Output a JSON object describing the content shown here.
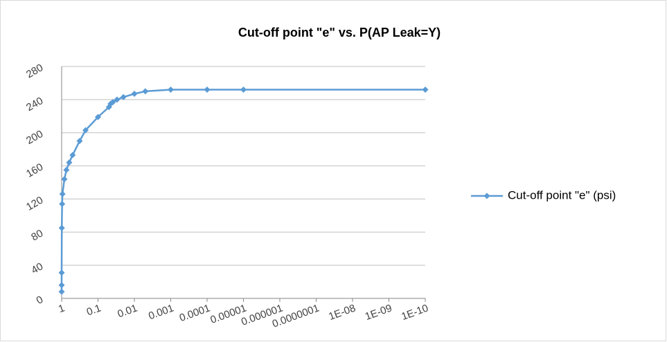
{
  "chart_data": {
    "type": "line",
    "title": "Cut-off point \"e\" vs. P(AP Leak=Y)",
    "xscale": "log",
    "x": [
      1,
      1,
      1,
      0.99,
      0.97,
      0.95,
      0.84,
      0.74,
      0.62,
      0.5,
      0.32,
      0.22,
      0.1,
      0.05,
      0.045,
      0.039,
      0.03,
      0.02,
      0.01,
      0.005,
      0.001,
      0.0001,
      1e-05,
      1e-10
    ],
    "series": [
      {
        "name": "Cut-off point \"e\" (psi)",
        "color": "#5b9bd5",
        "values": [
          8,
          16,
          31,
          85,
          114,
          126,
          144,
          155,
          164,
          173,
          190,
          203,
          219,
          231,
          235,
          237,
          240,
          243,
          247,
          250,
          252,
          252,
          252,
          252
        ]
      }
    ],
    "xlim": [
      1,
      1e-10
    ],
    "xticks": [
      1,
      0.1,
      0.01,
      0.001,
      0.0001,
      1e-05,
      1e-06,
      {
        "value": 1e-07,
        "label": "0.0000001"
      },
      {
        "value": 1e-08,
        "label": "1E-08"
      },
      {
        "value": 1e-09,
        "label": "1E-09"
      },
      {
        "value": 1e-10,
        "label": "1E-10"
      }
    ],
    "ylim": [
      0,
      280
    ],
    "yticks": [
      0,
      40,
      80,
      120,
      160,
      200,
      240,
      280
    ],
    "grid": true,
    "legend": "right"
  }
}
